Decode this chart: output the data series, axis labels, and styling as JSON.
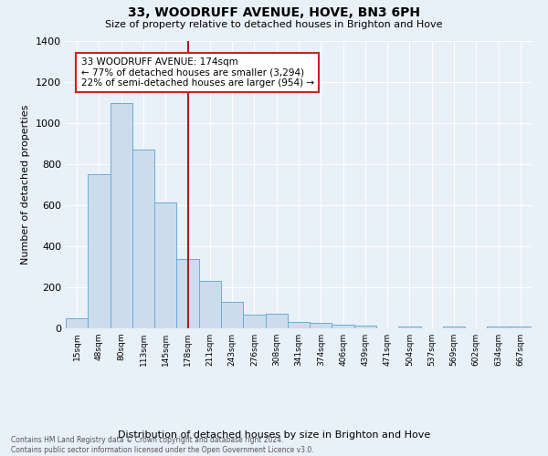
{
  "title": "33, WOODRUFF AVENUE, HOVE, BN3 6PH",
  "subtitle": "Size of property relative to detached houses in Brighton and Hove",
  "xlabel": "Distribution of detached houses by size in Brighton and Hove",
  "ylabel": "Number of detached properties",
  "footer_line1": "Contains HM Land Registry data © Crown copyright and database right 2024.",
  "footer_line2": "Contains public sector information licensed under the Open Government Licence v3.0.",
  "annotation_line1": "33 WOODRUFF AVENUE: 174sqm",
  "annotation_line2": "← 77% of detached houses are smaller (3,294)",
  "annotation_line3": "22% of semi-detached houses are larger (954) →",
  "bar_labels": [
    "15sqm",
    "48sqm",
    "80sqm",
    "113sqm",
    "145sqm",
    "178sqm",
    "211sqm",
    "243sqm",
    "276sqm",
    "308sqm",
    "341sqm",
    "374sqm",
    "406sqm",
    "439sqm",
    "471sqm",
    "504sqm",
    "537sqm",
    "569sqm",
    "602sqm",
    "634sqm",
    "667sqm"
  ],
  "bar_values": [
    50,
    750,
    1100,
    870,
    615,
    340,
    230,
    130,
    65,
    70,
    30,
    25,
    20,
    15,
    0,
    10,
    0,
    10,
    0,
    10,
    10
  ],
  "bar_color": "#ccdcec",
  "bar_edge_color": "#6aaed6",
  "vline_x_index": 5.0,
  "vline_color": "#aa2020",
  "background_color": "#e8f0f8",
  "plot_bg_color": "#e8f0f8",
  "annotation_box_edge": "#cc2222",
  "ylim": [
    0,
    1400
  ],
  "yticks": [
    0,
    200,
    400,
    600,
    800,
    1000,
    1200,
    1400
  ],
  "figsize": [
    6.0,
    5.0
  ],
  "dpi": 100
}
